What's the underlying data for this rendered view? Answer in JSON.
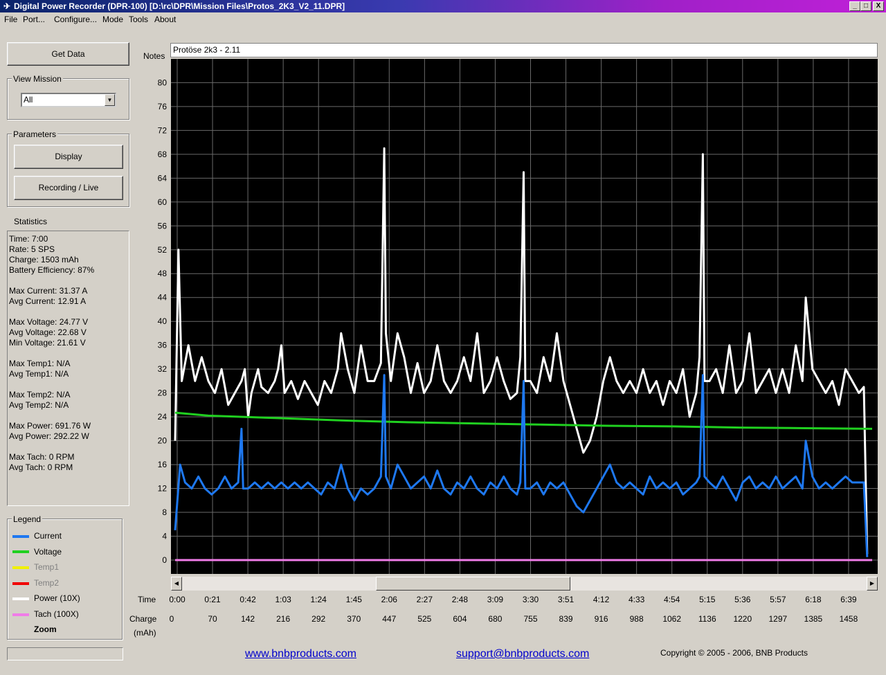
{
  "window": {
    "title": "Digital Power Recorder (DPR-100) [D:\\rc\\DPR\\Mission Files\\Protos_2K3_V2_11.DPR]",
    "buttons": [
      "_",
      "□",
      "X"
    ]
  },
  "menu": [
    "File",
    "Port...",
    "Configure...",
    "Mode",
    "Tools",
    "About"
  ],
  "left": {
    "get_data": "Get Data",
    "view_mission_label": "View Mission",
    "view_mission_value": "All",
    "parameters_label": "Parameters",
    "display_btn": "Display",
    "recording_btn": "Recording / Live",
    "statistics_label": "Statistics",
    "stats": [
      "Time: 7:00",
      "Rate: 5 SPS",
      "Charge: 1503 mAh",
      "Battery Efficiency: 87%",
      "",
      "Max Current: 31.37 A",
      "Avg Current: 12.91 A",
      "",
      "Max Voltage: 24.77 V",
      "Avg Voltage: 22.68 V",
      "Min Voltage: 21.61 V",
      "",
      "Max Temp1: N/A",
      "Avg Temp1: N/A",
      "",
      "Max Temp2: N/A",
      "Avg Temp2: N/A",
      "",
      "Max Power: 691.76 W",
      "Avg Power: 292.22 W",
      "",
      "Max Tach: 0 RPM",
      "Avg Tach: 0 RPM"
    ],
    "legend_label": "Legend",
    "legend": [
      {
        "name": "Current",
        "color": "#1e78f0",
        "enabled": true
      },
      {
        "name": "Voltage",
        "color": "#20d020",
        "enabled": true
      },
      {
        "name": "Temp1",
        "color": "#f0f000",
        "enabled": false
      },
      {
        "name": "Temp2",
        "color": "#f00000",
        "enabled": false
      },
      {
        "name": "Power  (10X)",
        "color": "#ffffff",
        "enabled": true
      },
      {
        "name": "Tach    (100X)",
        "color": "#f07ce8",
        "enabled": true
      }
    ],
    "zoom": "Zoom"
  },
  "notes": {
    "label": "Notes",
    "value": "Protöse 2k3 - 2.11"
  },
  "footer": {
    "link1": "www.bnbproducts.com",
    "link2": "support@bnbproducts.com",
    "copyright": "Copyright © 2005 - 2006, BNB Products",
    "time_label": "Time",
    "charge_label": "Charge",
    "charge_unit": "(mAh)"
  },
  "chart_data": {
    "type": "line",
    "background": "#000000",
    "grid": true,
    "ylim": [
      0,
      80
    ],
    "yticks": [
      0,
      4,
      8,
      12,
      16,
      20,
      24,
      28,
      32,
      36,
      40,
      44,
      48,
      52,
      56,
      60,
      64,
      68,
      72,
      76,
      80
    ],
    "x_time_ticks": [
      "0:00",
      "0:21",
      "0:42",
      "1:03",
      "1:24",
      "1:45",
      "2:06",
      "2:27",
      "2:48",
      "3:09",
      "3:30",
      "3:51",
      "4:12",
      "4:33",
      "4:54",
      "5:15",
      "5:36",
      "5:57",
      "6:18",
      "6:39"
    ],
    "x_charge_ticks": [
      "0",
      "70",
      "142",
      "216",
      "292",
      "370",
      "447",
      "525",
      "604",
      "680",
      "755",
      "839",
      "916",
      "988",
      "1062",
      "1136",
      "1220",
      "1297",
      "1385",
      "1458"
    ],
    "xlim_seconds": [
      0,
      420
    ],
    "series": [
      {
        "name": "Power  (10X)",
        "color": "#ffffff",
        "points": [
          [
            0,
            20
          ],
          [
            2,
            52
          ],
          [
            4,
            30
          ],
          [
            8,
            36
          ],
          [
            12,
            30
          ],
          [
            16,
            34
          ],
          [
            20,
            30
          ],
          [
            24,
            28
          ],
          [
            28,
            32
          ],
          [
            32,
            26
          ],
          [
            36,
            28
          ],
          [
            40,
            30
          ],
          [
            42,
            32
          ],
          [
            44,
            24
          ],
          [
            46,
            28
          ],
          [
            48,
            30
          ],
          [
            50,
            32
          ],
          [
            52,
            29
          ],
          [
            56,
            28
          ],
          [
            60,
            30
          ],
          [
            62,
            32
          ],
          [
            64,
            36
          ],
          [
            66,
            28
          ],
          [
            70,
            30
          ],
          [
            74,
            27
          ],
          [
            78,
            30
          ],
          [
            82,
            28
          ],
          [
            86,
            26
          ],
          [
            90,
            30
          ],
          [
            94,
            28
          ],
          [
            98,
            32
          ],
          [
            100,
            38
          ],
          [
            104,
            32
          ],
          [
            108,
            28
          ],
          [
            112,
            36
          ],
          [
            116,
            30
          ],
          [
            120,
            30
          ],
          [
            124,
            33
          ],
          [
            126,
            69
          ],
          [
            127,
            38
          ],
          [
            130,
            30
          ],
          [
            134,
            38
          ],
          [
            138,
            34
          ],
          [
            142,
            28
          ],
          [
            146,
            33
          ],
          [
            150,
            28
          ],
          [
            154,
            30
          ],
          [
            158,
            36
          ],
          [
            162,
            30
          ],
          [
            166,
            28
          ],
          [
            170,
            30
          ],
          [
            174,
            34
          ],
          [
            178,
            30
          ],
          [
            182,
            38
          ],
          [
            186,
            28
          ],
          [
            190,
            30
          ],
          [
            194,
            34
          ],
          [
            198,
            30
          ],
          [
            202,
            27
          ],
          [
            206,
            28
          ],
          [
            208,
            34
          ],
          [
            210,
            65
          ],
          [
            211,
            30
          ],
          [
            214,
            30
          ],
          [
            218,
            28
          ],
          [
            222,
            34
          ],
          [
            226,
            30
          ],
          [
            230,
            38
          ],
          [
            234,
            30
          ],
          [
            238,
            26
          ],
          [
            242,
            22
          ],
          [
            246,
            18
          ],
          [
            250,
            20
          ],
          [
            254,
            24
          ],
          [
            258,
            30
          ],
          [
            262,
            34
          ],
          [
            266,
            30
          ],
          [
            270,
            28
          ],
          [
            274,
            30
          ],
          [
            278,
            28
          ],
          [
            282,
            32
          ],
          [
            286,
            28
          ],
          [
            290,
            30
          ],
          [
            294,
            26
          ],
          [
            298,
            30
          ],
          [
            302,
            28
          ],
          [
            306,
            32
          ],
          [
            310,
            24
          ],
          [
            314,
            28
          ],
          [
            316,
            34
          ],
          [
            318,
            68
          ],
          [
            319,
            30
          ],
          [
            322,
            30
          ],
          [
            326,
            32
          ],
          [
            330,
            28
          ],
          [
            334,
            36
          ],
          [
            338,
            28
          ],
          [
            342,
            30
          ],
          [
            346,
            38
          ],
          [
            350,
            28
          ],
          [
            354,
            30
          ],
          [
            358,
            32
          ],
          [
            362,
            28
          ],
          [
            366,
            32
          ],
          [
            370,
            28
          ],
          [
            374,
            36
          ],
          [
            378,
            30
          ],
          [
            380,
            44
          ],
          [
            384,
            32
          ],
          [
            388,
            30
          ],
          [
            392,
            28
          ],
          [
            396,
            30
          ],
          [
            400,
            26
          ],
          [
            404,
            32
          ],
          [
            408,
            30
          ],
          [
            412,
            28
          ],
          [
            415,
            29
          ],
          [
            417,
            1
          ]
        ]
      },
      {
        "name": "Voltage",
        "color": "#20d020",
        "points": [
          [
            0,
            24.7
          ],
          [
            20,
            24.2
          ],
          [
            60,
            23.8
          ],
          [
            100,
            23.4
          ],
          [
            140,
            23.1
          ],
          [
            180,
            22.9
          ],
          [
            220,
            22.7
          ],
          [
            260,
            22.5
          ],
          [
            300,
            22.4
          ],
          [
            340,
            22.2
          ],
          [
            380,
            22.1
          ],
          [
            420,
            22.0
          ]
        ]
      },
      {
        "name": "Current",
        "color": "#1e78f0",
        "points": [
          [
            0,
            5
          ],
          [
            3,
            16
          ],
          [
            6,
            13
          ],
          [
            10,
            12
          ],
          [
            14,
            14
          ],
          [
            18,
            12
          ],
          [
            22,
            11
          ],
          [
            26,
            12
          ],
          [
            30,
            14
          ],
          [
            34,
            12
          ],
          [
            38,
            13
          ],
          [
            40,
            22
          ],
          [
            41,
            12
          ],
          [
            44,
            12
          ],
          [
            48,
            13
          ],
          [
            52,
            12
          ],
          [
            56,
            13
          ],
          [
            60,
            12
          ],
          [
            64,
            13
          ],
          [
            68,
            12
          ],
          [
            72,
            13
          ],
          [
            76,
            12
          ],
          [
            80,
            13
          ],
          [
            84,
            12
          ],
          [
            88,
            11
          ],
          [
            92,
            13
          ],
          [
            96,
            12
          ],
          [
            100,
            16
          ],
          [
            104,
            12
          ],
          [
            108,
            10
          ],
          [
            112,
            12
          ],
          [
            116,
            11
          ],
          [
            120,
            12
          ],
          [
            124,
            14
          ],
          [
            126,
            31
          ],
          [
            127,
            14
          ],
          [
            130,
            12
          ],
          [
            134,
            16
          ],
          [
            138,
            14
          ],
          [
            142,
            12
          ],
          [
            146,
            13
          ],
          [
            150,
            14
          ],
          [
            154,
            12
          ],
          [
            158,
            15
          ],
          [
            162,
            12
          ],
          [
            166,
            11
          ],
          [
            170,
            13
          ],
          [
            174,
            12
          ],
          [
            178,
            14
          ],
          [
            182,
            12
          ],
          [
            186,
            11
          ],
          [
            190,
            13
          ],
          [
            194,
            12
          ],
          [
            198,
            14
          ],
          [
            202,
            12
          ],
          [
            206,
            11
          ],
          [
            208,
            13
          ],
          [
            210,
            30
          ],
          [
            211,
            12
          ],
          [
            214,
            12
          ],
          [
            218,
            13
          ],
          [
            222,
            11
          ],
          [
            226,
            13
          ],
          [
            230,
            12
          ],
          [
            234,
            13
          ],
          [
            238,
            11
          ],
          [
            242,
            9
          ],
          [
            246,
            8
          ],
          [
            250,
            10
          ],
          [
            254,
            12
          ],
          [
            258,
            14
          ],
          [
            262,
            16
          ],
          [
            266,
            13
          ],
          [
            270,
            12
          ],
          [
            274,
            13
          ],
          [
            278,
            12
          ],
          [
            282,
            11
          ],
          [
            286,
            14
          ],
          [
            290,
            12
          ],
          [
            294,
            13
          ],
          [
            298,
            12
          ],
          [
            302,
            13
          ],
          [
            306,
            11
          ],
          [
            310,
            12
          ],
          [
            314,
            13
          ],
          [
            316,
            14
          ],
          [
            318,
            31
          ],
          [
            319,
            14
          ],
          [
            322,
            13
          ],
          [
            326,
            12
          ],
          [
            330,
            14
          ],
          [
            334,
            12
          ],
          [
            338,
            10
          ],
          [
            342,
            13
          ],
          [
            346,
            14
          ],
          [
            350,
            12
          ],
          [
            354,
            13
          ],
          [
            358,
            12
          ],
          [
            362,
            14
          ],
          [
            366,
            12
          ],
          [
            370,
            13
          ],
          [
            374,
            14
          ],
          [
            378,
            12
          ],
          [
            380,
            20
          ],
          [
            384,
            14
          ],
          [
            388,
            12
          ],
          [
            392,
            13
          ],
          [
            396,
            12
          ],
          [
            400,
            13
          ],
          [
            404,
            14
          ],
          [
            408,
            13
          ],
          [
            412,
            13
          ],
          [
            415,
            13
          ],
          [
            417,
            0.5
          ]
        ]
      },
      {
        "name": "Tach    (100X)",
        "color": "#f07ce8",
        "points": [
          [
            0,
            0
          ],
          [
            420,
            0
          ]
        ]
      }
    ]
  }
}
